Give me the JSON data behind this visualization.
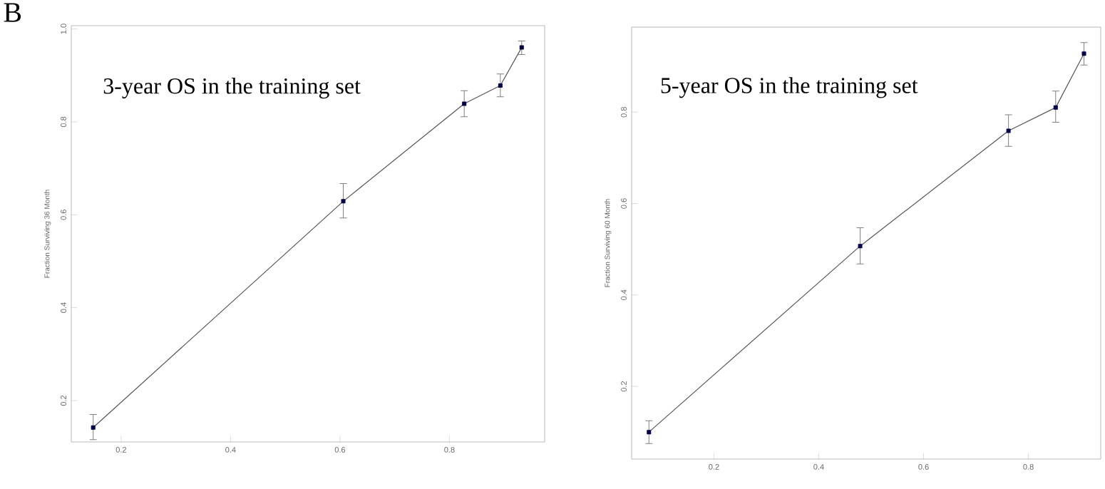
{
  "chart_data": [
    {
      "type": "line",
      "ylabel": "Fraction Surviving 36 Month",
      "annotations": [
        "B",
        "3-year OS in the training set"
      ],
      "marker": "square",
      "line_style": "solid",
      "xlim": [
        0.109,
        0.974
      ],
      "ylim": [
        0.111,
        1.007
      ],
      "xticks": [
        0.2,
        0.4,
        0.6,
        0.8
      ],
      "yticks": [
        0.2,
        0.4,
        0.6,
        0.8,
        {
          "value": 1.0,
          "label": "1.0"
        }
      ],
      "series": [
        {
          "color": "#555555",
          "x": [
            0.149,
            0.606,
            0.827,
            0.893,
            0.932
          ],
          "values": [
            0.142,
            0.629,
            0.839,
            0.878,
            0.96
          ],
          "errors": [
            [
              0.116,
              0.17
            ],
            [
              0.593,
              0.667
            ],
            [
              0.811,
              0.867
            ],
            [
              0.854,
              0.903
            ],
            [
              0.945,
              0.974
            ]
          ]
        }
      ]
    },
    {
      "type": "line",
      "ylabel": "Fraction Surviving 60 Month",
      "annotations": [
        "5-year OS in the training set"
      ],
      "marker": "square",
      "line_style": "solid",
      "xlim": [
        0.043,
        0.938
      ],
      "ylim": [
        0.041,
        0.986
      ],
      "xticks": [
        0.2,
        0.4,
        0.6,
        0.8
      ],
      "yticks": [
        0.2,
        0.4,
        0.6,
        0.8
      ],
      "series": [
        {
          "color": "#555555",
          "x": [
            0.076,
            0.479,
            0.762,
            0.852,
            0.906
          ],
          "values": [
            0.1,
            0.507,
            0.759,
            0.81,
            0.928
          ],
          "errors": [
            [
              0.075,
              0.125
            ],
            [
              0.468,
              0.547
            ],
            [
              0.725,
              0.794
            ],
            [
              0.778,
              0.846
            ],
            [
              0.903,
              0.952
            ]
          ]
        }
      ]
    }
  ]
}
